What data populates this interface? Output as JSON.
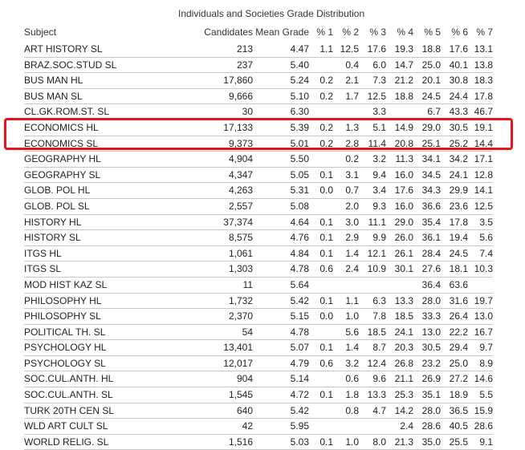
{
  "table": {
    "group_title": "Individuals and Societies Grade Distribution",
    "headers": {
      "subject": "Subject",
      "candidates": "Candidates",
      "mean": "Mean Grade",
      "p1": "% 1",
      "p2": "% 2",
      "p3": "% 3",
      "p4": "% 4",
      "p5": "% 5",
      "p6": "% 6",
      "p7": "% 7"
    },
    "rows": [
      {
        "subject": "ART HISTORY SL",
        "candidates": "213",
        "mean": "4.47",
        "p1": "1.1",
        "p2": "12.5",
        "p3": "17.6",
        "p4": "19.3",
        "p5": "18.8",
        "p6": "17.6",
        "p7": "13.1"
      },
      {
        "subject": "BRAZ.SOC.STUD SL",
        "candidates": "237",
        "mean": "5.40",
        "p1": "",
        "p2": "0.4",
        "p3": "6.0",
        "p4": "14.7",
        "p5": "25.0",
        "p6": "40.1",
        "p7": "13.8"
      },
      {
        "subject": "BUS MAN HL",
        "candidates": "17,860",
        "mean": "5.24",
        "p1": "0.2",
        "p2": "2.1",
        "p3": "7.3",
        "p4": "21.2",
        "p5": "20.1",
        "p6": "30.8",
        "p7": "18.3"
      },
      {
        "subject": "BUS MAN SL",
        "candidates": "9,666",
        "mean": "5.10",
        "p1": "0.2",
        "p2": "1.7",
        "p3": "12.5",
        "p4": "18.8",
        "p5": "24.5",
        "p6": "24.4",
        "p7": "17.8"
      },
      {
        "subject": "CL.GK.ROM.ST. SL",
        "candidates": "30",
        "mean": "6.30",
        "p1": "",
        "p2": "",
        "p3": "3.3",
        "p4": "",
        "p5": "6.7",
        "p6": "43.3",
        "p7": "46.7"
      },
      {
        "subject": "ECONOMICS HL",
        "candidates": "17,133",
        "mean": "5.39",
        "p1": "0.2",
        "p2": "1.3",
        "p3": "5.1",
        "p4": "14.9",
        "p5": "29.0",
        "p6": "30.5",
        "p7": "19.1"
      },
      {
        "subject": "ECONOMICS SL",
        "candidates": "9,373",
        "mean": "5.01",
        "p1": "0.2",
        "p2": "2.8",
        "p3": "11.4",
        "p4": "20.8",
        "p5": "25.1",
        "p6": "25.2",
        "p7": "14.4"
      },
      {
        "subject": "GEOGRAPHY HL",
        "candidates": "4,904",
        "mean": "5.50",
        "p1": "",
        "p2": "0.2",
        "p3": "3.2",
        "p4": "11.3",
        "p5": "34.1",
        "p6": "34.2",
        "p7": "17.1"
      },
      {
        "subject": "GEOGRAPHY SL",
        "candidates": "4,347",
        "mean": "5.05",
        "p1": "0.1",
        "p2": "3.1",
        "p3": "9.4",
        "p4": "16.0",
        "p5": "34.5",
        "p6": "24.1",
        "p7": "12.8"
      },
      {
        "subject": "GLOB. POL HL",
        "candidates": "4,263",
        "mean": "5.31",
        "p1": "0.0",
        "p2": "0.7",
        "p3": "3.4",
        "p4": "17.6",
        "p5": "34.3",
        "p6": "29.9",
        "p7": "14.1"
      },
      {
        "subject": "GLOB. POL SL",
        "candidates": "2,557",
        "mean": "5.08",
        "p1": "",
        "p2": "2.0",
        "p3": "9.3",
        "p4": "16.0",
        "p5": "36.6",
        "p6": "23.6",
        "p7": "12.5"
      },
      {
        "subject": "HISTORY HL",
        "candidates": "37,374",
        "mean": "4.64",
        "p1": "0.1",
        "p2": "3.0",
        "p3": "11.1",
        "p4": "29.0",
        "p5": "35.4",
        "p6": "17.8",
        "p7": "3.5"
      },
      {
        "subject": "HISTORY SL",
        "candidates": "8,575",
        "mean": "4.76",
        "p1": "0.1",
        "p2": "2.9",
        "p3": "9.9",
        "p4": "26.0",
        "p5": "36.1",
        "p6": "19.4",
        "p7": "5.6"
      },
      {
        "subject": "ITGS HL",
        "candidates": "1,061",
        "mean": "4.84",
        "p1": "0.1",
        "p2": "1.4",
        "p3": "12.1",
        "p4": "26.1",
        "p5": "28.4",
        "p6": "24.5",
        "p7": "7.4"
      },
      {
        "subject": "ITGS SL",
        "candidates": "1,303",
        "mean": "4.78",
        "p1": "0.6",
        "p2": "2.4",
        "p3": "10.9",
        "p4": "30.1",
        "p5": "27.6",
        "p6": "18.1",
        "p7": "10.3"
      },
      {
        "subject": "MOD HIST KAZ SL",
        "candidates": "11",
        "mean": "5.64",
        "p1": "",
        "p2": "",
        "p3": "",
        "p4": "",
        "p5": "36.4",
        "p6": "63.6",
        "p7": ""
      },
      {
        "subject": "PHILOSOPHY HL",
        "candidates": "1,732",
        "mean": "5.42",
        "p1": "0.1",
        "p2": "1.1",
        "p3": "6.3",
        "p4": "13.3",
        "p5": "28.0",
        "p6": "31.6",
        "p7": "19.7"
      },
      {
        "subject": "PHILOSOPHY SL",
        "candidates": "2,370",
        "mean": "5.15",
        "p1": "0.0",
        "p2": "1.0",
        "p3": "7.8",
        "p4": "18.5",
        "p5": "33.3",
        "p6": "26.4",
        "p7": "13.0"
      },
      {
        "subject": "POLITICAL TH. SL",
        "candidates": "54",
        "mean": "4.78",
        "p1": "",
        "p2": "5.6",
        "p3": "18.5",
        "p4": "24.1",
        "p5": "13.0",
        "p6": "22.2",
        "p7": "16.7"
      },
      {
        "subject": "PSYCHOLOGY HL",
        "candidates": "13,401",
        "mean": "5.07",
        "p1": "0.1",
        "p2": "1.4",
        "p3": "8.7",
        "p4": "20.3",
        "p5": "30.5",
        "p6": "29.4",
        "p7": "9.7"
      },
      {
        "subject": "PSYCHOLOGY SL",
        "candidates": "12,017",
        "mean": "4.79",
        "p1": "0.6",
        "p2": "3.2",
        "p3": "12.4",
        "p4": "26.8",
        "p5": "23.2",
        "p6": "25.0",
        "p7": "8.9"
      },
      {
        "subject": "SOC.CUL.ANTH. HL",
        "candidates": "904",
        "mean": "5.14",
        "p1": "",
        "p2": "0.6",
        "p3": "9.6",
        "p4": "21.1",
        "p5": "26.9",
        "p6": "27.2",
        "p7": "14.6"
      },
      {
        "subject": "SOC.CUL.ANTH. SL",
        "candidates": "1,545",
        "mean": "4.72",
        "p1": "0.1",
        "p2": "1.8",
        "p3": "13.3",
        "p4": "25.3",
        "p5": "35.1",
        "p6": "18.9",
        "p7": "5.5"
      },
      {
        "subject": "TURK 20TH CEN SL",
        "candidates": "640",
        "mean": "5.42",
        "p1": "",
        "p2": "0.8",
        "p3": "4.7",
        "p4": "14.2",
        "p5": "28.0",
        "p6": "36.5",
        "p7": "15.9"
      },
      {
        "subject": "WLD ART CULT SL",
        "candidates": "42",
        "mean": "5.95",
        "p1": "",
        "p2": "",
        "p3": "",
        "p4": "2.4",
        "p5": "28.6",
        "p6": "40.5",
        "p7": "28.6"
      },
      {
        "subject": "WORLD RELIG. SL",
        "candidates": "1,516",
        "mean": "5.03",
        "p1": "0.1",
        "p2": "1.0",
        "p3": "8.0",
        "p4": "21.3",
        "p5": "35.0",
        "p6": "25.5",
        "p7": "9.1"
      }
    ]
  },
  "highlight": {
    "color": "#e8141b",
    "rows": [
      "ECONOMICS HL",
      "ECONOMICS SL"
    ]
  }
}
